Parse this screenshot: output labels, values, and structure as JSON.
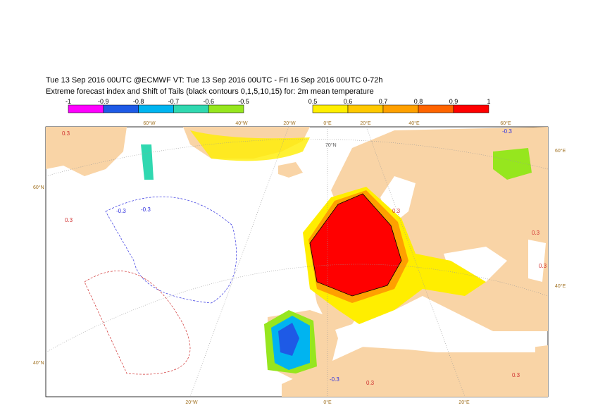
{
  "header": {
    "line1": "Tue 13 Sep 2016 00UTC @ECMWF VT: Tue 13 Sep 2016 00UTC - Fri 16 Sep 2016 00UTC  0-72h",
    "line2": "Extreme forecast index and Shift of Tails (black contours 0,1,5,10,15) for: 2m mean temperature"
  },
  "legend": {
    "negative": {
      "ticks": [
        -1,
        -0.9,
        -0.8,
        -0.7,
        -0.6,
        -0.5
      ],
      "colors": [
        "#ff00ff",
        "#1e5ae6",
        "#00b4f0",
        "#30d8b0",
        "#96e61e"
      ]
    },
    "positive": {
      "ticks": [
        0.5,
        0.6,
        0.7,
        0.8,
        0.9,
        1
      ],
      "colors": [
        "#ffee00",
        "#ffc800",
        "#ffa000",
        "#ff6400",
        "#ff0000"
      ]
    }
  },
  "map": {
    "top_labels": [
      "60°W",
      "40°W",
      "20°W",
      "0°E",
      "20°E",
      "40°E",
      "60°E"
    ],
    "left_labels": [
      "60°N",
      "40°N"
    ],
    "right_labels": [
      "60°E",
      "40°E"
    ],
    "bottom_labels": [
      "20°W",
      "0°E",
      "20°E"
    ],
    "parallel_label": "70°N",
    "contour_labels": [
      "0.3",
      "-0.3",
      "-0.3",
      "-0.3",
      "0.3",
      "0.3",
      "0.3",
      "-0.3",
      "0.3",
      "0.3",
      "0.3"
    ]
  }
}
